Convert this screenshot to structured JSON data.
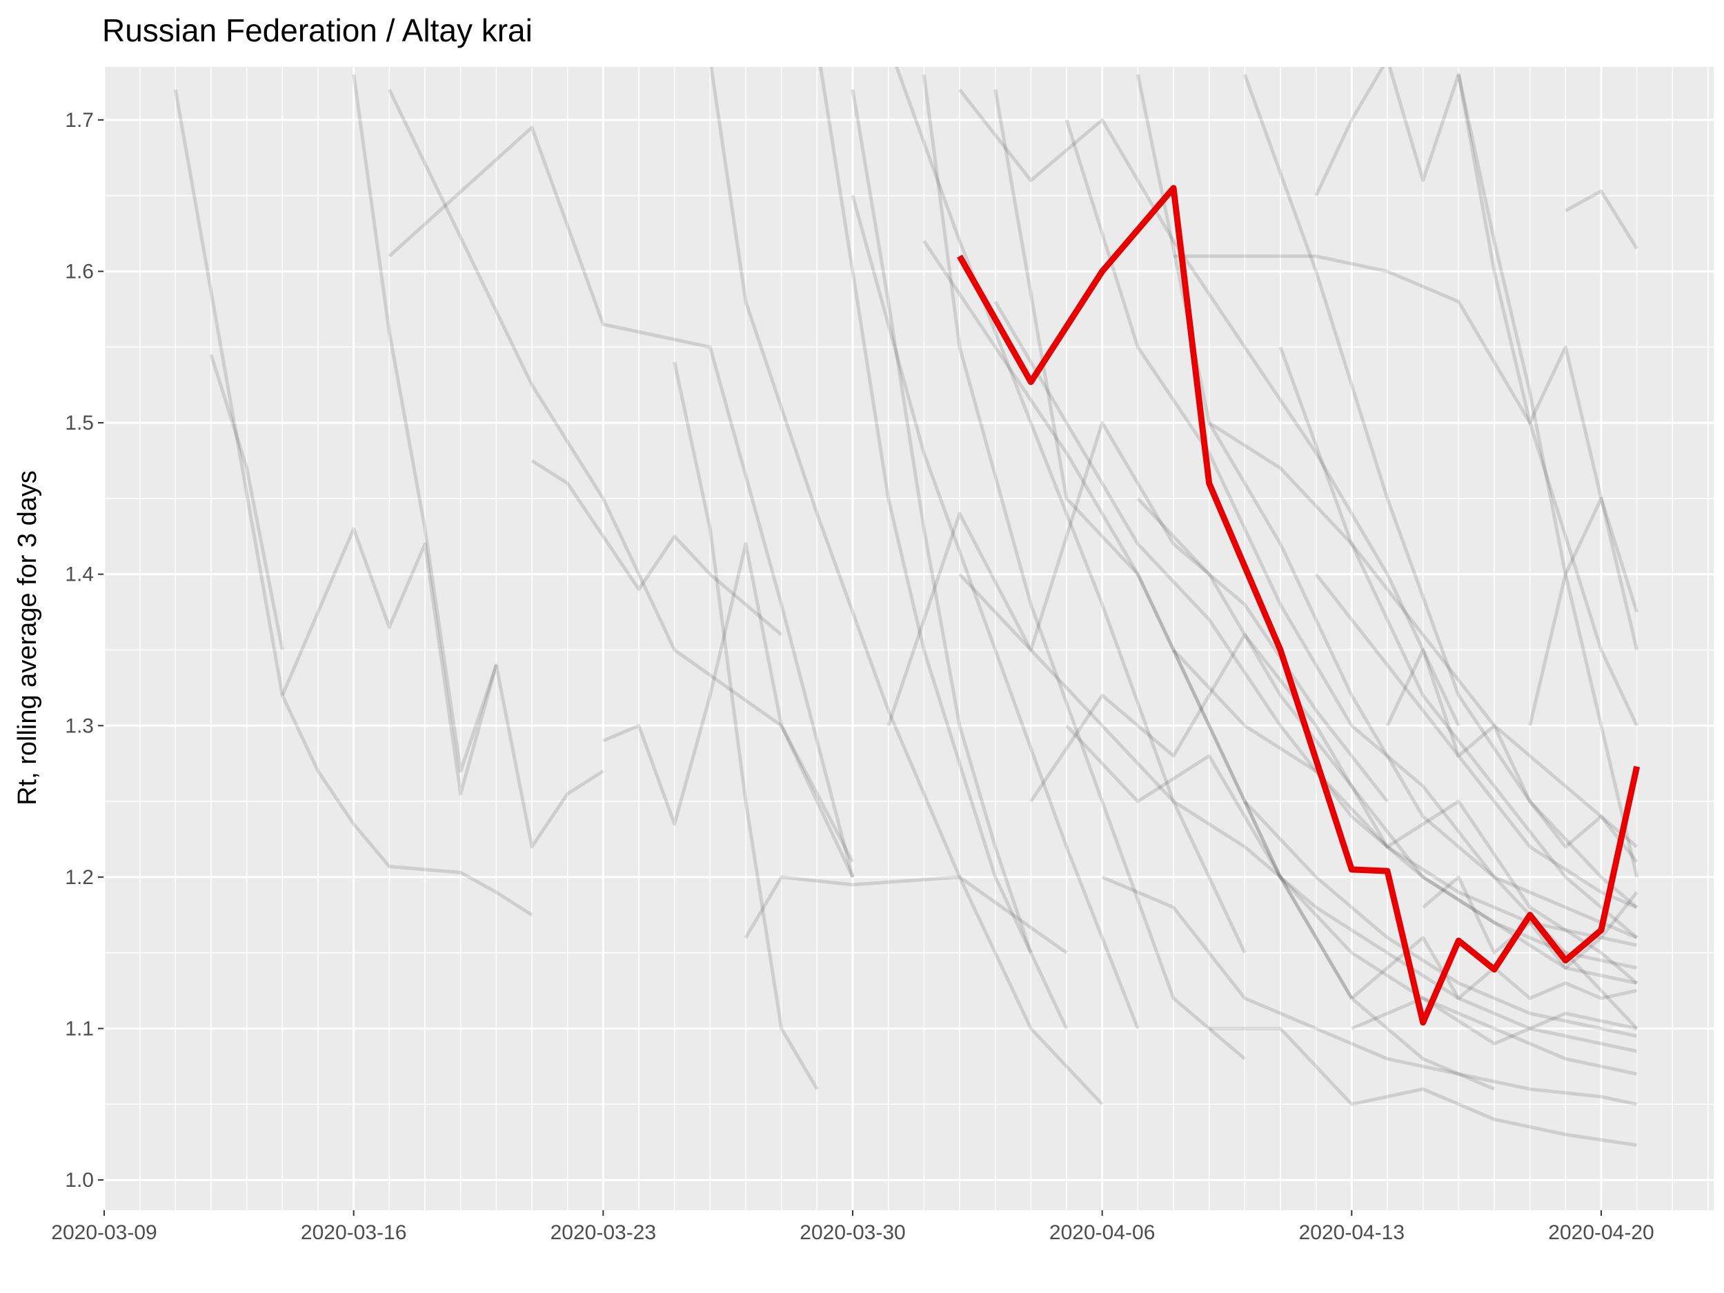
{
  "chart_data": {
    "type": "line",
    "title": "Russian Federation / Altay krai",
    "xlabel": "",
    "ylabel": "Rt, rolling average for 3 days",
    "x_axis": {
      "type": "date",
      "range": [
        "2020-03-09",
        "2020-04-23"
      ],
      "major_ticks": [
        "2020-03-09",
        "2020-03-16",
        "2020-03-23",
        "2020-03-30",
        "2020-04-06",
        "2020-04-13",
        "2020-04-20"
      ],
      "tick_labels": [
        "2020-03-09",
        "2020-03-16",
        "2020-03-23",
        "2020-03-30",
        "2020-04-06",
        "2020-04-13",
        "2020-04-20"
      ]
    },
    "y_axis": {
      "range": [
        0.98,
        1.735
      ],
      "ticks": [
        1.0,
        1.1,
        1.2,
        1.3,
        1.4,
        1.5,
        1.6,
        1.7
      ],
      "tick_labels": [
        "1.0",
        "1.1",
        "1.2",
        "1.3",
        "1.4",
        "1.5",
        "1.6",
        "1.7"
      ]
    },
    "grid": true,
    "legend": "none",
    "colors": {
      "panel_background": "#ebebeb",
      "grid": "#ffffff",
      "highlight_line": "#e60000",
      "background_lines": "#000000"
    },
    "highlight_series": {
      "x": [
        "2020-04-02",
        "2020-04-04",
        "2020-04-06",
        "2020-04-08",
        "2020-04-09",
        "2020-04-11",
        "2020-04-13",
        "2020-04-14",
        "2020-04-15",
        "2020-04-16",
        "2020-04-17",
        "2020-04-18",
        "2020-04-19",
        "2020-04-20",
        "2020-04-21"
      ],
      "y": [
        1.61,
        1.527,
        1.6,
        1.655,
        1.46,
        1.35,
        1.205,
        1.204,
        1.104,
        1.158,
        1.139,
        1.175,
        1.145,
        1.165,
        1.273
      ]
    },
    "background_series": [
      {
        "x": [
          "2020-03-11",
          "2020-03-14",
          "2020-03-15",
          "2020-03-16",
          "2020-03-17",
          "2020-03-18",
          "2020-03-19",
          "2020-03-20",
          "2020-03-21"
        ],
        "y": [
          1.72,
          1.32,
          1.27,
          1.235,
          1.207,
          1.205,
          1.203,
          1.19,
          1.175
        ]
      },
      {
        "x": [
          "2020-03-12",
          "2020-03-13",
          "2020-03-14"
        ],
        "y": [
          1.545,
          1.47,
          1.35
        ]
      },
      {
        "x": [
          "2020-03-16",
          "2020-03-17",
          "2020-03-18",
          "2020-03-19",
          "2020-03-20"
        ],
        "y": [
          1.73,
          1.56,
          1.43,
          1.27,
          1.34
        ]
      },
      {
        "x": [
          "2020-03-14",
          "2020-03-16",
          "2020-03-17",
          "2020-03-18",
          "2020-03-19",
          "2020-03-20",
          "2020-03-21",
          "2020-03-22",
          "2020-03-23"
        ],
        "y": [
          1.32,
          1.43,
          1.365,
          1.42,
          1.255,
          1.34,
          1.22,
          1.255,
          1.27
        ]
      },
      {
        "x": [
          "2020-03-17",
          "2020-03-21",
          "2020-03-23",
          "2020-03-26",
          "2020-03-28",
          "2020-03-30"
        ],
        "y": [
          1.61,
          1.695,
          1.565,
          1.55,
          1.38,
          1.2
        ]
      },
      {
        "x": [
          "2020-03-17",
          "2020-03-21",
          "2020-03-23",
          "2020-03-25",
          "2020-03-28",
          "2020-03-30"
        ],
        "y": [
          1.72,
          1.525,
          1.45,
          1.35,
          1.3,
          1.21
        ]
      },
      {
        "x": [
          "2020-03-21",
          "2020-03-22",
          "2020-03-24",
          "2020-03-25",
          "2020-03-26",
          "2020-03-27",
          "2020-03-28"
        ],
        "y": [
          1.475,
          1.46,
          1.39,
          1.425,
          1.4,
          1.38,
          1.36
        ]
      },
      {
        "x": [
          "2020-03-23",
          "2020-03-24",
          "2020-03-25",
          "2020-03-26",
          "2020-03-27",
          "2020-03-28",
          "2020-03-30"
        ],
        "y": [
          1.29,
          1.3,
          1.235,
          1.32,
          1.42,
          1.3,
          1.2
        ]
      },
      {
        "x": [
          "2020-03-25",
          "2020-03-26",
          "2020-03-27",
          "2020-03-28",
          "2020-03-29"
        ],
        "y": [
          1.54,
          1.43,
          1.25,
          1.1,
          1.06
        ]
      },
      {
        "x": [
          "2020-03-27",
          "2020-03-28",
          "2020-03-30",
          "2020-04-02",
          "2020-04-05"
        ],
        "y": [
          1.16,
          1.2,
          1.195,
          1.2,
          1.15
        ]
      },
      {
        "x": [
          "2020-03-26",
          "2020-03-27",
          "2020-03-29",
          "2020-03-31",
          "2020-04-02",
          "2020-04-04",
          "2020-04-06"
        ],
        "y": [
          1.74,
          1.58,
          1.44,
          1.31,
          1.2,
          1.1,
          1.05
        ]
      },
      {
        "x": [
          "2020-03-29",
          "2020-03-30",
          "2020-03-31",
          "2020-04-01",
          "2020-04-03",
          "2020-04-05"
        ],
        "y": [
          1.75,
          1.6,
          1.45,
          1.35,
          1.2,
          1.1
        ]
      },
      {
        "x": [
          "2020-03-30",
          "2020-04-01",
          "2020-04-03",
          "2020-04-05",
          "2020-04-07"
        ],
        "y": [
          1.65,
          1.48,
          1.35,
          1.22,
          1.1
        ]
      },
      {
        "x": [
          "2020-04-01",
          "2020-04-02",
          "2020-04-04",
          "2020-04-06",
          "2020-04-08",
          "2020-04-10"
        ],
        "y": [
          1.73,
          1.55,
          1.38,
          1.25,
          1.12,
          1.08
        ]
      },
      {
        "x": [
          "2020-03-31",
          "2020-04-02",
          "2020-04-04",
          "2020-04-06",
          "2020-04-08",
          "2020-04-10",
          "2020-04-12",
          "2020-04-14"
        ],
        "y": [
          1.3,
          1.44,
          1.35,
          1.5,
          1.42,
          1.38,
          1.31,
          1.25
        ]
      },
      {
        "x": [
          "2020-04-03",
          "2020-04-05",
          "2020-04-07",
          "2020-04-09",
          "2020-04-11",
          "2020-04-13",
          "2020-04-15",
          "2020-04-17"
        ],
        "y": [
          1.72,
          1.45,
          1.4,
          1.3,
          1.2,
          1.12,
          1.08,
          1.06
        ]
      },
      {
        "x": [
          "2020-04-04",
          "2020-04-06",
          "2020-04-08",
          "2020-04-10",
          "2020-04-12",
          "2020-04-14",
          "2020-04-16",
          "2020-04-18",
          "2020-04-20",
          "2020-04-21"
        ],
        "y": [
          1.25,
          1.32,
          1.28,
          1.36,
          1.3,
          1.22,
          1.25,
          1.18,
          1.15,
          1.13
        ]
      },
      {
        "x": [
          "2020-04-05",
          "2020-04-07",
          "2020-04-09",
          "2020-04-11",
          "2020-04-13",
          "2020-04-15",
          "2020-04-17",
          "2020-04-19",
          "2020-04-21"
        ],
        "y": [
          1.7,
          1.55,
          1.48,
          1.38,
          1.3,
          1.26,
          1.2,
          1.18,
          1.16
        ]
      },
      {
        "x": [
          "2020-04-07",
          "2020-04-09",
          "2020-04-11",
          "2020-04-13",
          "2020-04-15",
          "2020-04-17",
          "2020-04-19",
          "2020-04-21"
        ],
        "y": [
          1.73,
          1.5,
          1.42,
          1.32,
          1.24,
          1.2,
          1.15,
          1.1
        ]
      },
      {
        "x": [
          "2020-04-08",
          "2020-04-10",
          "2020-04-12",
          "2020-04-14",
          "2020-04-16",
          "2020-04-18",
          "2020-04-20",
          "2020-04-21"
        ],
        "y": [
          1.61,
          1.61,
          1.61,
          1.6,
          1.58,
          1.5,
          1.35,
          1.3
        ]
      },
      {
        "x": [
          "2020-04-10",
          "2020-04-12",
          "2020-04-14",
          "2020-04-16",
          "2020-04-18",
          "2020-04-20",
          "2020-04-21"
        ],
        "y": [
          1.73,
          1.6,
          1.45,
          1.32,
          1.25,
          1.2,
          1.18
        ]
      },
      {
        "x": [
          "2020-04-12",
          "2020-04-13",
          "2020-04-14",
          "2020-04-15",
          "2020-04-16",
          "2020-04-17",
          "2020-04-18",
          "2020-04-19",
          "2020-04-20",
          "2020-04-21"
        ],
        "y": [
          1.65,
          1.7,
          1.74,
          1.66,
          1.73,
          1.62,
          1.52,
          1.4,
          1.3,
          1.2
        ]
      },
      {
        "x": [
          "2020-04-16",
          "2020-04-17",
          "2020-04-18",
          "2020-04-19",
          "2020-04-20",
          "2020-04-21"
        ],
        "y": [
          1.73,
          1.6,
          1.5,
          1.55,
          1.45,
          1.35
        ]
      },
      {
        "x": [
          "2020-04-19",
          "2020-04-20",
          "2020-04-21"
        ],
        "y": [
          1.64,
          1.653,
          1.615
        ]
      },
      {
        "x": [
          "2020-04-18",
          "2020-04-19",
          "2020-04-20",
          "2020-04-21"
        ],
        "y": [
          1.3,
          1.4,
          1.45,
          1.375
        ]
      },
      {
        "x": [
          "2020-04-09",
          "2020-04-11",
          "2020-04-13",
          "2020-04-15",
          "2020-04-17",
          "2020-04-19",
          "2020-04-21"
        ],
        "y": [
          1.1,
          1.1,
          1.05,
          1.06,
          1.04,
          1.03,
          1.023
        ]
      },
      {
        "x": [
          "2020-04-06",
          "2020-04-08",
          "2020-04-10",
          "2020-04-12",
          "2020-04-14",
          "2020-04-16",
          "2020-04-18",
          "2020-04-20",
          "2020-04-21"
        ],
        "y": [
          1.2,
          1.18,
          1.12,
          1.1,
          1.08,
          1.07,
          1.06,
          1.055,
          1.05
        ]
      },
      {
        "x": [
          "2020-04-02",
          "2020-04-04",
          "2020-04-06",
          "2020-04-08",
          "2020-04-10",
          "2020-04-12",
          "2020-04-14",
          "2020-04-16",
          "2020-04-18",
          "2020-04-20",
          "2020-04-21"
        ],
        "y": [
          1.4,
          1.35,
          1.3,
          1.25,
          1.22,
          1.18,
          1.15,
          1.12,
          1.1,
          1.09,
          1.085
        ]
      },
      {
        "x": [
          "2020-04-05",
          "2020-04-07",
          "2020-04-09",
          "2020-04-11",
          "2020-04-13",
          "2020-04-15",
          "2020-04-17",
          "2020-04-19",
          "2020-04-21"
        ],
        "y": [
          1.3,
          1.25,
          1.28,
          1.2,
          1.15,
          1.12,
          1.1,
          1.08,
          1.07
        ]
      },
      {
        "x": [
          "2020-04-07",
          "2020-04-09",
          "2020-04-11",
          "2020-04-13",
          "2020-04-15",
          "2020-04-17",
          "2020-04-19",
          "2020-04-21"
        ],
        "y": [
          1.45,
          1.4,
          1.32,
          1.26,
          1.2,
          1.17,
          1.14,
          1.13
        ]
      },
      {
        "x": [
          "2020-04-03",
          "2020-04-05",
          "2020-04-07",
          "2020-04-09",
          "2020-04-11",
          "2020-04-13",
          "2020-04-15",
          "2020-04-17",
          "2020-04-19",
          "2020-04-21"
        ],
        "y": [
          1.58,
          1.5,
          1.42,
          1.37,
          1.3,
          1.24,
          1.2,
          1.17,
          1.15,
          1.14
        ]
      },
      {
        "x": [
          "2020-04-10",
          "2020-04-12",
          "2020-04-14",
          "2020-04-16",
          "2020-04-18",
          "2020-04-20",
          "2020-04-21"
        ],
        "y": [
          1.25,
          1.2,
          1.16,
          1.13,
          1.11,
          1.1,
          1.095
        ]
      },
      {
        "x": [
          "2020-04-11",
          "2020-04-13",
          "2020-04-15",
          "2020-04-17",
          "2020-04-19",
          "2020-04-21"
        ],
        "y": [
          1.55,
          1.42,
          1.32,
          1.26,
          1.2,
          1.16
        ]
      },
      {
        "x": [
          "2020-04-08",
          "2020-04-10",
          "2020-04-12",
          "2020-04-14",
          "2020-04-16",
          "2020-04-18",
          "2020-04-20",
          "2020-04-21"
        ],
        "y": [
          1.35,
          1.3,
          1.27,
          1.22,
          1.19,
          1.17,
          1.16,
          1.155
        ]
      },
      {
        "x": [
          "2020-04-12",
          "2020-04-14",
          "2020-04-16",
          "2020-04-18",
          "2020-04-20",
          "2020-04-21"
        ],
        "y": [
          1.4,
          1.34,
          1.28,
          1.22,
          1.19,
          1.18
        ]
      },
      {
        "x": [
          "2020-04-14",
          "2020-04-15",
          "2020-04-16",
          "2020-04-17",
          "2020-04-18",
          "2020-04-19",
          "2020-04-20",
          "2020-04-21"
        ],
        "y": [
          1.3,
          1.35,
          1.28,
          1.3,
          1.25,
          1.22,
          1.24,
          1.21
        ]
      },
      {
        "x": [
          "2020-04-13",
          "2020-04-15",
          "2020-04-17",
          "2020-04-19",
          "2020-04-21"
        ],
        "y": [
          1.1,
          1.12,
          1.09,
          1.11,
          1.1
        ]
      },
      {
        "x": [
          "2020-04-15",
          "2020-04-16",
          "2020-04-17",
          "2020-04-18",
          "2020-04-19",
          "2020-04-20",
          "2020-04-21"
        ],
        "y": [
          1.18,
          1.2,
          1.15,
          1.17,
          1.14,
          1.16,
          1.19
        ]
      },
      {
        "x": [
          "2020-04-13",
          "2020-04-14",
          "2020-04-15",
          "2020-04-16",
          "2020-04-17",
          "2020-04-18",
          "2020-04-19",
          "2020-04-20",
          "2020-04-21"
        ],
        "y": [
          1.12,
          1.14,
          1.16,
          1.12,
          1.14,
          1.12,
          1.13,
          1.12,
          1.125
        ]
      },
      {
        "x": [
          "2020-03-31",
          "2020-04-02",
          "2020-04-04",
          "2020-04-06",
          "2020-04-08",
          "2020-04-10"
        ],
        "y": [
          1.75,
          1.62,
          1.5,
          1.38,
          1.25,
          1.15
        ]
      },
      {
        "x": [
          "2020-04-01",
          "2020-04-03",
          "2020-04-05",
          "2020-04-07",
          "2020-04-09",
          "2020-04-11",
          "2020-04-13"
        ],
        "y": [
          1.62,
          1.55,
          1.48,
          1.4,
          1.3,
          1.2,
          1.12
        ]
      },
      {
        "x": [
          "2020-03-30",
          "2020-03-31",
          "2020-04-01",
          "2020-04-02",
          "2020-04-03",
          "2020-04-04"
        ],
        "y": [
          1.72,
          1.58,
          1.43,
          1.3,
          1.22,
          1.15
        ]
      },
      {
        "x": [
          "2020-04-02",
          "2020-04-04",
          "2020-04-06",
          "2020-04-08",
          "2020-04-10",
          "2020-04-12",
          "2020-04-14",
          "2020-04-16"
        ],
        "y": [
          1.72,
          1.66,
          1.7,
          1.62,
          1.55,
          1.48,
          1.4,
          1.3
        ]
      },
      {
        "x": [
          "2020-04-09",
          "2020-04-11",
          "2020-04-13",
          "2020-04-15",
          "2020-04-17",
          "2020-04-19",
          "2020-04-21"
        ],
        "y": [
          1.5,
          1.47,
          1.42,
          1.36,
          1.3,
          1.26,
          1.22
        ]
      }
    ]
  }
}
